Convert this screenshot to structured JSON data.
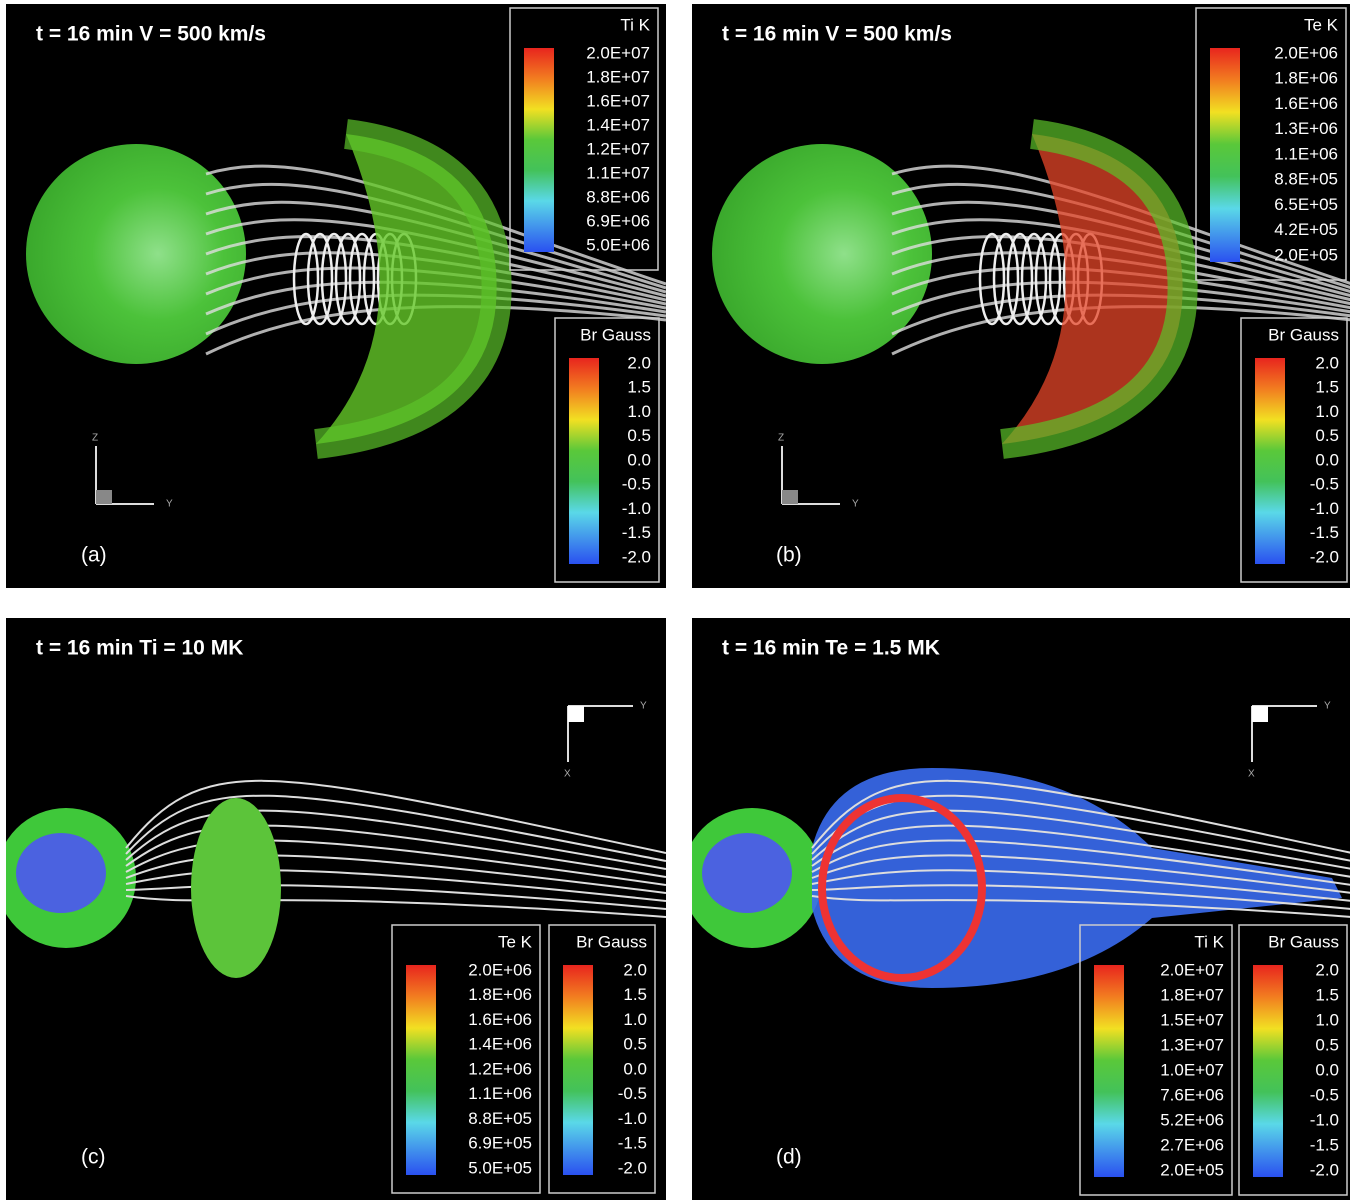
{
  "panels": [
    {
      "title": "t = 16 min  V = 500 km/s",
      "label": "(a)",
      "axis_labels": [
        "Z",
        "Y"
      ],
      "colorbars": [
        {
          "title": "Ti K",
          "labels": [
            "2.0E+07",
            "1.8E+07",
            "1.6E+07",
            "1.4E+07",
            "1.2E+07",
            "1.1E+07",
            "8.8E+06",
            "6.9E+06",
            "5.0E+06"
          ]
        },
        {
          "title": "Br Gauss",
          "labels": [
            "2.0",
            "1.5",
            "1.0",
            "0.5",
            "0.0",
            "-0.5",
            "-1.0",
            "-1.5",
            "-2.0"
          ]
        }
      ]
    },
    {
      "title": "t = 16 min  V = 500 km/s",
      "label": "(b)",
      "axis_labels": [
        "Z",
        "Y"
      ],
      "colorbars": [
        {
          "title": "Te K",
          "labels": [
            "2.0E+06",
            "1.8E+06",
            "1.6E+06",
            "1.3E+06",
            "1.1E+06",
            "8.8E+05",
            "6.5E+05",
            "4.2E+05",
            "2.0E+05"
          ]
        },
        {
          "title": "Br Gauss",
          "labels": [
            "2.0",
            "1.5",
            "1.0",
            "0.5",
            "0.0",
            "-0.5",
            "-1.0",
            "-1.5",
            "-2.0"
          ]
        }
      ]
    },
    {
      "title": "t = 16 min   Ti = 10 MK",
      "label": "(c)",
      "axis_labels": [
        "Y",
        "X"
      ],
      "colorbars": [
        {
          "title": "Te K",
          "labels": [
            "2.0E+06",
            "1.8E+06",
            "1.6E+06",
            "1.4E+06",
            "1.2E+06",
            "1.1E+06",
            "8.8E+05",
            "6.9E+05",
            "5.0E+05"
          ]
        },
        {
          "title": "Br Gauss",
          "labels": [
            "2.0",
            "1.5",
            "1.0",
            "0.5",
            "0.0",
            "-0.5",
            "-1.0",
            "-1.5",
            "-2.0"
          ]
        }
      ]
    },
    {
      "title": "t = 16 min   Te = 1.5 MK",
      "label": "(d)",
      "axis_labels": [
        "Y",
        "X"
      ],
      "colorbars": [
        {
          "title": "Ti K",
          "labels": [
            "2.0E+07",
            "1.8E+07",
            "1.5E+07",
            "1.3E+07",
            "1.0E+07",
            "7.6E+06",
            "5.2E+06",
            "2.7E+06",
            "2.0E+05"
          ]
        },
        {
          "title": "Br Gauss",
          "labels": [
            "2.0",
            "1.5",
            "1.0",
            "0.5",
            "0.0",
            "-0.5",
            "-1.0",
            "-1.5",
            "-2.0"
          ]
        }
      ]
    }
  ]
}
